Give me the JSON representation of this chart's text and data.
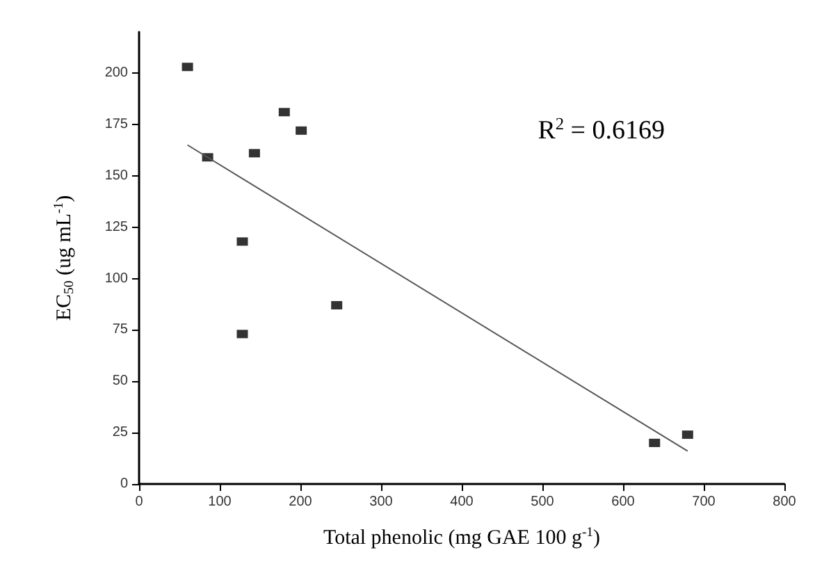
{
  "chart_data": {
    "type": "scatter",
    "xlabel": "Total phenolic (mg GAE 100 g$^{-1}$)",
    "ylabel": "EC$_{50}$ (ug mL$^{-1}$)",
    "annotations": [
      "R$^{2}$ = 0.6169"
    ],
    "series": [
      {
        "color": "#000000",
        "marker": "square",
        "x": [
          60,
          85,
          128,
          128,
          143,
          180,
          201,
          245,
          639,
          680
        ],
        "values": [
          203,
          159,
          118,
          73,
          161,
          181,
          172,
          87,
          20,
          24
        ]
      },
      {
        "type": "line",
        "color": "#555555",
        "marker": "none",
        "line_style": "solid",
        "x": [
          60,
          680
        ],
        "values": [
          165,
          16
        ]
      }
    ],
    "xlim": [
      0,
      800
    ],
    "xticks": [
      0,
      100,
      200,
      300,
      400,
      500,
      600,
      700,
      800
    ],
    "ylim": [
      0,
      220
    ],
    "yticks": [
      0,
      25,
      50,
      75,
      100,
      125,
      150,
      175,
      200
    ],
    "grid": false
  }
}
